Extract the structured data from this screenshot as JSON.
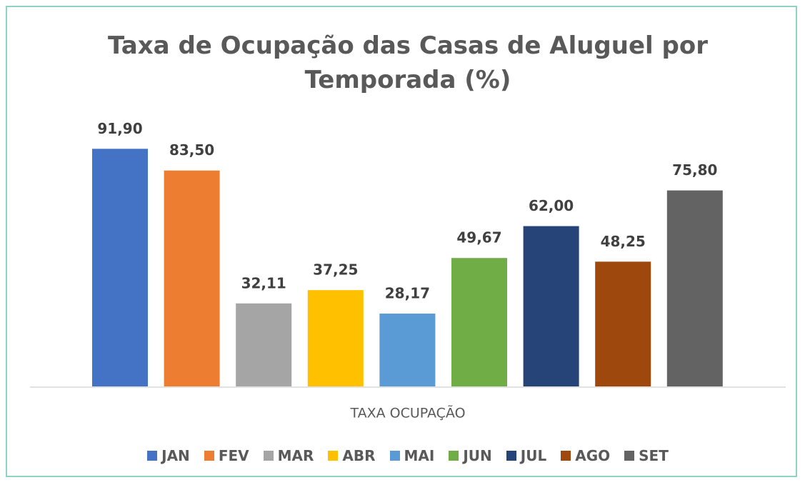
{
  "chart_data": {
    "type": "bar",
    "title": "Taxa de Ocupação das Casas de Aluguel por Temporada (%)",
    "categories": [
      "TAXA OCUPAÇÃO"
    ],
    "ylim": [
      0,
      100
    ],
    "legend": "bottom",
    "series": [
      {
        "name": "JAN",
        "color": "#4472c4",
        "values": [
          91.9
        ],
        "value_labels": [
          "91,90"
        ]
      },
      {
        "name": "FEV",
        "color": "#ed7d31",
        "values": [
          83.5
        ],
        "value_labels": [
          "83,50"
        ]
      },
      {
        "name": "MAR",
        "color": "#a5a5a5",
        "values": [
          32.11
        ],
        "value_labels": [
          "32,11"
        ]
      },
      {
        "name": "ABR",
        "color": "#ffc000",
        "values": [
          37.25
        ],
        "value_labels": [
          "37,25"
        ]
      },
      {
        "name": "MAI",
        "color": "#5b9bd5",
        "values": [
          28.17
        ],
        "value_labels": [
          "28,17"
        ]
      },
      {
        "name": "JUN",
        "color": "#70ad47",
        "values": [
          49.67
        ],
        "value_labels": [
          "49,67"
        ]
      },
      {
        "name": "JUL",
        "color": "#264478",
        "values": [
          62.0
        ],
        "value_labels": [
          "62,00"
        ]
      },
      {
        "name": "AGO",
        "color": "#9e480e",
        "values": [
          48.25
        ],
        "value_labels": [
          "48,25"
        ]
      },
      {
        "name": "SET",
        "color": "#636363",
        "values": [
          75.8
        ],
        "value_labels": [
          "75,80"
        ]
      }
    ]
  }
}
